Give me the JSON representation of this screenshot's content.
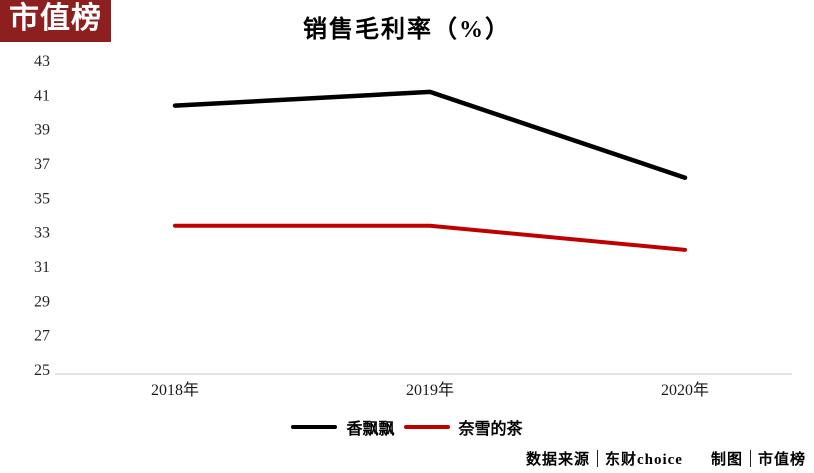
{
  "logo": {
    "text": "市值榜",
    "bg_color": "#8e1f1f",
    "text_color": "#ffffff"
  },
  "title": "销售毛利率（%）",
  "chart_data": {
    "type": "line",
    "title": "销售毛利率（%）",
    "categories": [
      "2018年",
      "2019年",
      "2020年"
    ],
    "series": [
      {
        "name": "香飘飘",
        "color": "#000000",
        "values": [
          40.4,
          41.2,
          36.2
        ]
      },
      {
        "name": "奈雪的茶",
        "color": "#c00000",
        "values": [
          33.4,
          33.4,
          32.0
        ]
      }
    ],
    "xlabel": "",
    "ylabel": "",
    "ylim": [
      25,
      43
    ],
    "ytick_step": 2,
    "grid": false,
    "legend_position": "bottom"
  },
  "footer": {
    "source_label": "数据来源",
    "source_value": "东财choice",
    "credit_label": "制图",
    "credit_value": "市值榜"
  }
}
